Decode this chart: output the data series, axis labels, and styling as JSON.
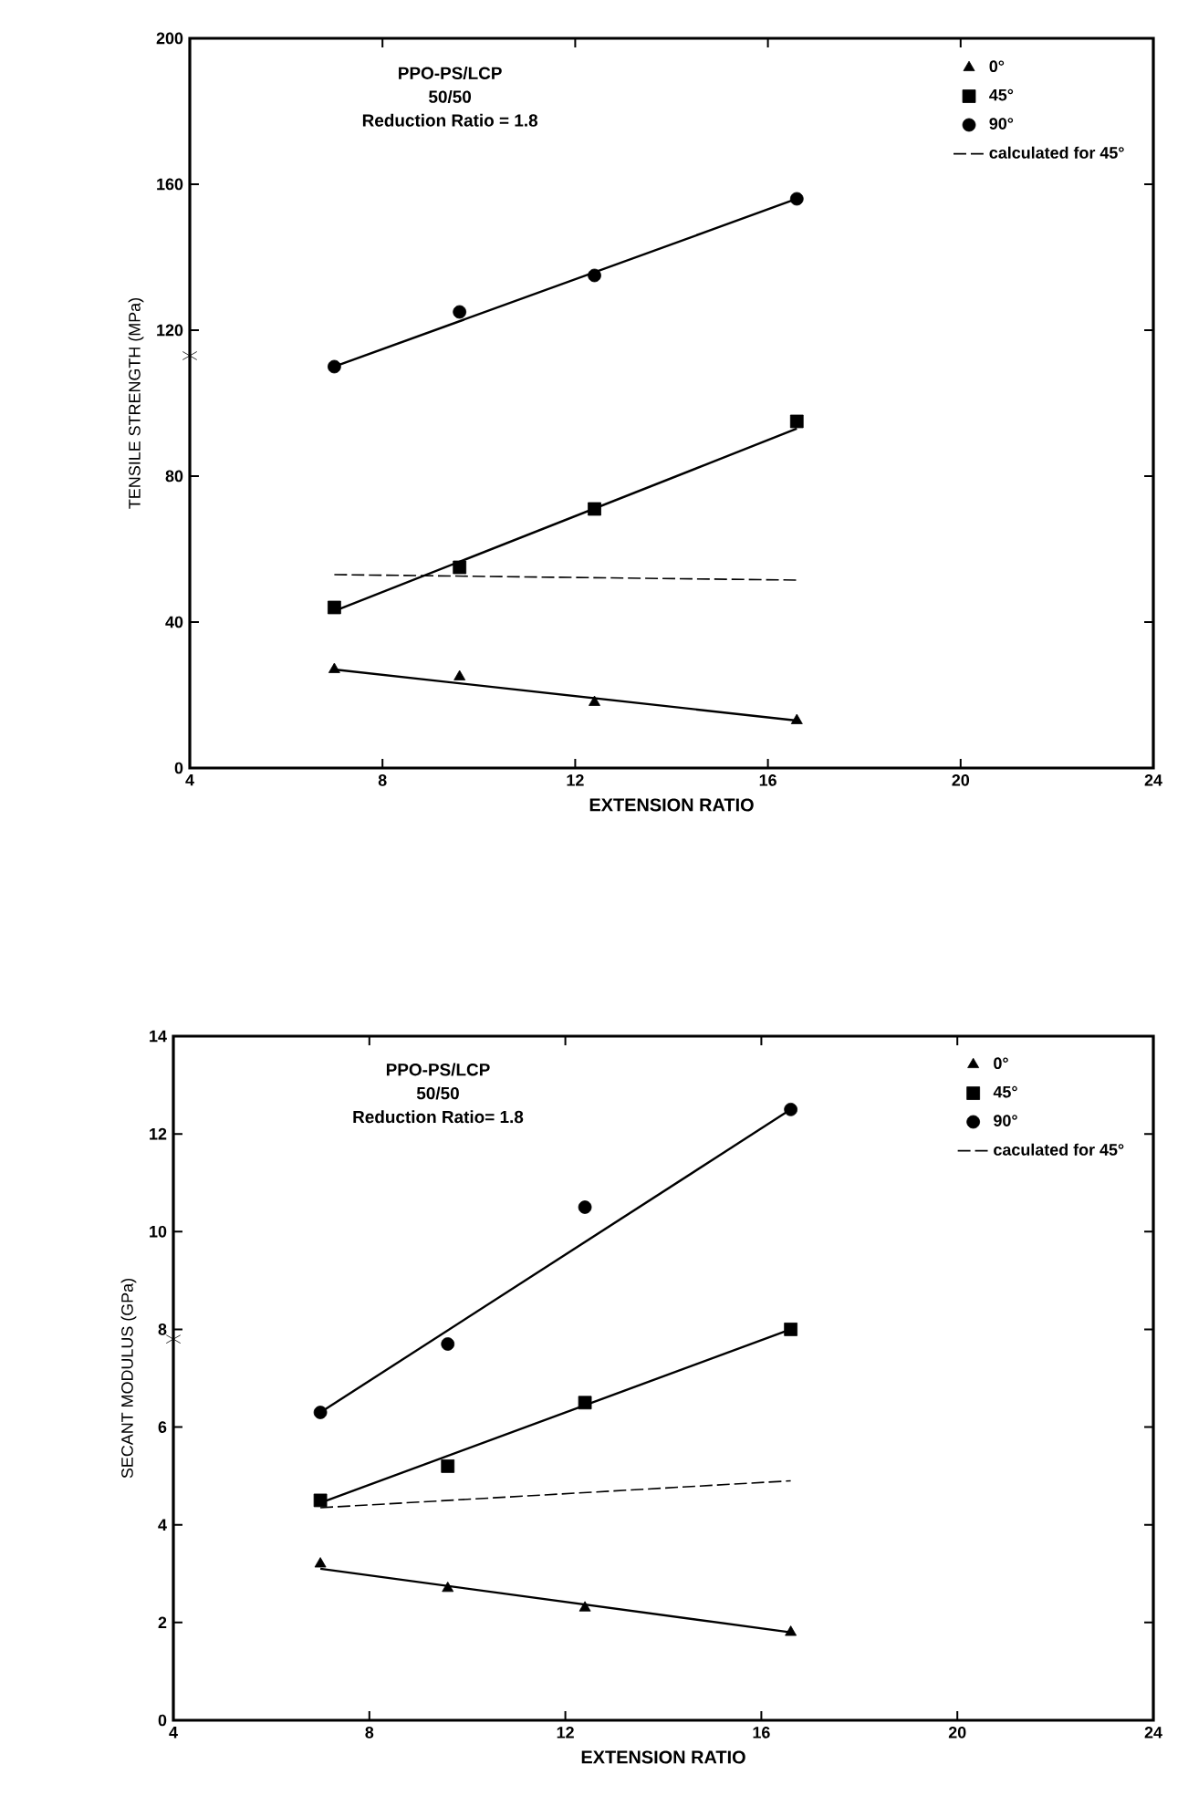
{
  "chart_data": [
    {
      "type": "scatter",
      "xlabel": "EXTENSION RATIO",
      "ylabel": "TENSILE STRENGTH (MPa)",
      "annotations": [
        "PPO-PS/LCP",
        "50/50",
        "Reduction Ratio = 1.8"
      ],
      "xlim": [
        4,
        24
      ],
      "xticks": [
        4,
        8,
        12,
        16,
        20,
        24
      ],
      "ylim": [
        0,
        200
      ],
      "yticks": [
        0,
        40,
        80,
        120,
        160,
        200
      ],
      "legend": "top right",
      "grid": false,
      "series": [
        {
          "name": "0°",
          "marker": "triangle",
          "color": "#000000",
          "x": [
            7,
            9.6,
            12.4,
            16.6
          ],
          "values": [
            27,
            25,
            18,
            13
          ]
        },
        {
          "name": "45°",
          "marker": "square",
          "color": "#000000",
          "x": [
            7,
            9.6,
            12.4,
            16.6
          ],
          "values": [
            44,
            55,
            71,
            95
          ]
        },
        {
          "name": "90°",
          "marker": "circle",
          "color": "#000000",
          "x": [
            7,
            9.6,
            12.4,
            16.6
          ],
          "values": [
            110,
            125,
            135,
            156
          ]
        },
        {
          "name": "calculated for 45°",
          "type": "line",
          "line_style": "dashed",
          "color": "#000000",
          "x": [
            7,
            16.6
          ],
          "values": [
            53,
            51.5
          ]
        },
        {
          "type": "line",
          "line_style": "solid",
          "color": "#000000",
          "x": [
            7,
            16.6
          ],
          "values": [
            27,
            13
          ]
        },
        {
          "type": "line",
          "line_style": "solid",
          "color": "#000000",
          "x": [
            7,
            16.6
          ],
          "values": [
            43,
            93
          ]
        },
        {
          "type": "line",
          "line_style": "solid",
          "color": "#000000",
          "x": [
            7,
            16.6
          ],
          "values": [
            110,
            156
          ]
        },
        {
          "marker": "cross",
          "color": "#000000",
          "x": [
            4
          ],
          "values": [
            113
          ]
        }
      ]
    },
    {
      "type": "scatter",
      "xlabel": "EXTENSION RATIO",
      "ylabel": "SECANT MODULUS (GPa)",
      "annotations": [
        "PPO-PS/LCP",
        "50/50",
        "Reduction Ratio= 1.8"
      ],
      "xlim": [
        4,
        24
      ],
      "xticks": [
        4,
        8,
        12,
        16,
        20,
        24
      ],
      "ylim": [
        0,
        14
      ],
      "yticks": [
        0,
        2,
        4,
        6,
        8,
        10,
        12,
        14
      ],
      "legend": "top right",
      "grid": false,
      "series": [
        {
          "name": "0°",
          "marker": "triangle",
          "color": "#000000",
          "x": [
            7,
            9.6,
            12.4,
            16.6
          ],
          "values": [
            3.2,
            2.7,
            2.3,
            1.8
          ]
        },
        {
          "name": "45°",
          "marker": "square",
          "color": "#000000",
          "x": [
            7,
            9.6,
            12.4,
            16.6
          ],
          "values": [
            4.5,
            5.2,
            6.5,
            8.0
          ]
        },
        {
          "name": "90°",
          "marker": "circle",
          "color": "#000000",
          "x": [
            7,
            9.6,
            12.4,
            16.6
          ],
          "values": [
            6.3,
            7.7,
            10.5,
            12.5
          ]
        },
        {
          "name": "caculated for 45°",
          "type": "line",
          "line_style": "dashed",
          "color": "#000000",
          "x": [
            7,
            16.6
          ],
          "values": [
            4.35,
            4.9
          ]
        },
        {
          "type": "line",
          "line_style": "solid",
          "color": "#000000",
          "x": [
            7,
            16.6
          ],
          "values": [
            3.1,
            1.8
          ]
        },
        {
          "type": "line",
          "line_style": "solid",
          "color": "#000000",
          "x": [
            7,
            16.6
          ],
          "values": [
            4.45,
            8.0
          ]
        },
        {
          "type": "line",
          "line_style": "solid",
          "color": "#000000",
          "x": [
            7,
            16.6
          ],
          "values": [
            6.3,
            12.5
          ]
        },
        {
          "marker": "cross",
          "color": "#000000",
          "x": [
            4
          ],
          "values": [
            7.8
          ]
        }
      ]
    }
  ]
}
